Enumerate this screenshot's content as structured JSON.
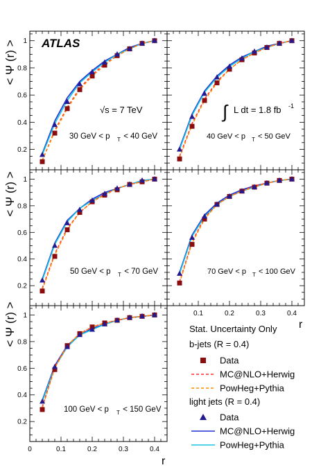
{
  "figure": {
    "experiment": "ATLAS",
    "energy_prefix": "√s = 7 TeV",
    "lumi_text": "L dt = 1.8 fb",
    "lumi_exp": "-1",
    "ylabel": "< Ψ (r) >",
    "xlabel": "r",
    "stat_note": "Stat. Uncertainty Only"
  },
  "legend": {
    "b_header": "b-jets (R = 0.4)",
    "light_header": "light jets (R = 0.4)",
    "entries": [
      {
        "group": "b",
        "kind": "square",
        "label": "Data",
        "color": "#8b0c0c"
      },
      {
        "group": "b",
        "kind": "dashed",
        "label": "MC@NLO+Herwig",
        "color": "#ff2a2a"
      },
      {
        "group": "b",
        "kind": "dashed",
        "label": "PowHeg+Pythia",
        "color": "#ff8a00"
      },
      {
        "group": "light",
        "kind": "triangle",
        "label": "Data",
        "color": "#231a8f"
      },
      {
        "group": "light",
        "kind": "solid",
        "label": "MC@NLO+Herwig",
        "color": "#1f2fd4"
      },
      {
        "group": "light",
        "kind": "solid",
        "label": "PowHeg+Pythia",
        "color": "#19c2e0"
      }
    ]
  },
  "chart_data": [
    {
      "type": "line",
      "panel": "30-40",
      "pt_text": "30 GeV < p",
      "pt_sub": "T",
      "pt_tail": " < 40 GeV",
      "x": [
        0.04,
        0.08,
        0.12,
        0.16,
        0.2,
        0.24,
        0.28,
        0.32,
        0.36,
        0.4
      ],
      "xlim": [
        0,
        0.44
      ],
      "ylim": [
        0.05,
        1.07
      ],
      "series": [
        {
          "name": "b-jets Data",
          "values": [
            0.11,
            0.32,
            0.5,
            0.64,
            0.74,
            0.82,
            0.89,
            0.94,
            0.98,
            1.0
          ]
        },
        {
          "name": "b-jets MC@NLO+Herwig",
          "values": [
            0.12,
            0.34,
            0.51,
            0.65,
            0.75,
            0.83,
            0.89,
            0.94,
            0.98,
            1.0
          ]
        },
        {
          "name": "b-jets PowHeg+Pythia",
          "values": [
            0.12,
            0.33,
            0.5,
            0.64,
            0.74,
            0.82,
            0.89,
            0.94,
            0.98,
            1.0
          ]
        },
        {
          "name": "light jets Data",
          "values": [
            0.16,
            0.38,
            0.55,
            0.68,
            0.77,
            0.84,
            0.9,
            0.94,
            0.98,
            1.0
          ]
        },
        {
          "name": "light jets MC@NLO+Herwig",
          "values": [
            0.17,
            0.41,
            0.58,
            0.7,
            0.78,
            0.85,
            0.9,
            0.95,
            0.98,
            1.0
          ]
        },
        {
          "name": "light jets PowHeg+Pythia",
          "values": [
            0.16,
            0.39,
            0.56,
            0.69,
            0.77,
            0.84,
            0.9,
            0.94,
            0.98,
            1.0
          ]
        }
      ]
    },
    {
      "type": "line",
      "panel": "40-50",
      "pt_text": "40 GeV < p",
      "pt_sub": "T",
      "pt_tail": " < 50 GeV",
      "x": [
        0.04,
        0.08,
        0.12,
        0.16,
        0.2,
        0.24,
        0.28,
        0.32,
        0.36,
        0.4
      ],
      "xlim": [
        0,
        0.44
      ],
      "ylim": [
        0.05,
        1.07
      ],
      "series": [
        {
          "name": "b-jets Data",
          "values": [
            0.13,
            0.37,
            0.56,
            0.69,
            0.79,
            0.86,
            0.91,
            0.95,
            0.98,
            1.0
          ]
        },
        {
          "name": "b-jets MC@NLO+Herwig",
          "values": [
            0.15,
            0.39,
            0.57,
            0.7,
            0.79,
            0.86,
            0.91,
            0.95,
            0.98,
            1.0
          ]
        },
        {
          "name": "b-jets PowHeg+Pythia",
          "values": [
            0.14,
            0.38,
            0.56,
            0.69,
            0.79,
            0.86,
            0.91,
            0.95,
            0.98,
            1.0
          ]
        },
        {
          "name": "light jets Data",
          "values": [
            0.2,
            0.44,
            0.61,
            0.73,
            0.81,
            0.87,
            0.92,
            0.95,
            0.98,
            1.0
          ]
        },
        {
          "name": "light jets MC@NLO+Herwig",
          "values": [
            0.21,
            0.46,
            0.63,
            0.74,
            0.82,
            0.88,
            0.92,
            0.96,
            0.98,
            1.0
          ]
        },
        {
          "name": "light jets PowHeg+Pythia",
          "values": [
            0.2,
            0.45,
            0.62,
            0.73,
            0.81,
            0.87,
            0.92,
            0.95,
            0.98,
            1.0
          ]
        }
      ]
    },
    {
      "type": "line",
      "panel": "50-70",
      "pt_text": "50 GeV < p",
      "pt_sub": "T",
      "pt_tail": " < 70 GeV",
      "x": [
        0.04,
        0.08,
        0.12,
        0.16,
        0.2,
        0.24,
        0.28,
        0.32,
        0.36,
        0.4
      ],
      "xlim": [
        0,
        0.44
      ],
      "ylim": [
        0.05,
        1.07
      ],
      "series": [
        {
          "name": "b-jets Data",
          "values": [
            0.16,
            0.42,
            0.62,
            0.75,
            0.83,
            0.88,
            0.92,
            0.96,
            0.98,
            1.0
          ]
        },
        {
          "name": "b-jets MC@NLO+Herwig",
          "values": [
            0.18,
            0.44,
            0.63,
            0.75,
            0.83,
            0.89,
            0.93,
            0.96,
            0.98,
            1.0
          ]
        },
        {
          "name": "b-jets PowHeg+Pythia",
          "values": [
            0.17,
            0.43,
            0.62,
            0.75,
            0.83,
            0.88,
            0.93,
            0.96,
            0.98,
            1.0
          ]
        },
        {
          "name": "light jets Data",
          "values": [
            0.24,
            0.5,
            0.67,
            0.77,
            0.84,
            0.89,
            0.93,
            0.96,
            0.99,
            1.0
          ]
        },
        {
          "name": "light jets MC@NLO+Herwig",
          "values": [
            0.25,
            0.52,
            0.69,
            0.78,
            0.85,
            0.9,
            0.93,
            0.96,
            0.99,
            1.0
          ]
        },
        {
          "name": "light jets PowHeg+Pythia",
          "values": [
            0.24,
            0.51,
            0.68,
            0.78,
            0.84,
            0.89,
            0.93,
            0.96,
            0.99,
            1.0
          ]
        }
      ]
    },
    {
      "type": "line",
      "panel": "70-100",
      "pt_text": "70 GeV < p",
      "pt_sub": "T",
      "pt_tail": " < 100 GeV",
      "x": [
        0.04,
        0.08,
        0.12,
        0.16,
        0.2,
        0.24,
        0.28,
        0.32,
        0.36,
        0.4
      ],
      "xlim": [
        0,
        0.44
      ],
      "ylim": [
        0.05,
        1.07
      ],
      "series": [
        {
          "name": "b-jets Data",
          "values": [
            0.22,
            0.51,
            0.7,
            0.81,
            0.87,
            0.91,
            0.94,
            0.97,
            0.99,
            1.0
          ]
        },
        {
          "name": "b-jets MC@NLO+Herwig",
          "values": [
            0.23,
            0.53,
            0.71,
            0.81,
            0.87,
            0.91,
            0.95,
            0.97,
            0.99,
            1.0
          ]
        },
        {
          "name": "b-jets PowHeg+Pythia",
          "values": [
            0.22,
            0.52,
            0.7,
            0.81,
            0.87,
            0.91,
            0.94,
            0.97,
            0.99,
            1.0
          ]
        },
        {
          "name": "light jets Data",
          "values": [
            0.29,
            0.56,
            0.72,
            0.81,
            0.87,
            0.91,
            0.94,
            0.97,
            0.99,
            1.0
          ]
        },
        {
          "name": "light jets MC@NLO+Herwig",
          "values": [
            0.3,
            0.58,
            0.73,
            0.82,
            0.88,
            0.92,
            0.95,
            0.97,
            0.99,
            1.0
          ]
        },
        {
          "name": "light jets PowHeg+Pythia",
          "values": [
            0.29,
            0.57,
            0.72,
            0.81,
            0.87,
            0.91,
            0.94,
            0.97,
            0.99,
            1.0
          ]
        }
      ]
    },
    {
      "type": "line",
      "panel": "100-150",
      "pt_text": "100 GeV < p",
      "pt_sub": "T",
      "pt_tail": " < 150 GeV",
      "x": [
        0.04,
        0.08,
        0.12,
        0.16,
        0.2,
        0.24,
        0.28,
        0.32,
        0.36,
        0.4
      ],
      "xlim": [
        0,
        0.44
      ],
      "ylim": [
        0.05,
        1.07
      ],
      "series": [
        {
          "name": "b-jets Data",
          "values": [
            0.29,
            0.59,
            0.77,
            0.86,
            0.91,
            0.94,
            0.96,
            0.98,
            0.99,
            1.0
          ]
        },
        {
          "name": "b-jets MC@NLO+Herwig",
          "values": [
            0.31,
            0.61,
            0.77,
            0.86,
            0.91,
            0.94,
            0.96,
            0.98,
            0.99,
            1.0
          ]
        },
        {
          "name": "b-jets PowHeg+Pythia",
          "values": [
            0.3,
            0.6,
            0.77,
            0.86,
            0.91,
            0.94,
            0.96,
            0.98,
            0.99,
            1.0
          ]
        },
        {
          "name": "light jets Data",
          "values": [
            0.35,
            0.61,
            0.76,
            0.85,
            0.89,
            0.93,
            0.96,
            0.98,
            0.99,
            1.0
          ]
        },
        {
          "name": "light jets MC@NLO+Herwig",
          "values": [
            0.36,
            0.62,
            0.77,
            0.85,
            0.9,
            0.93,
            0.96,
            0.98,
            0.99,
            1.0
          ]
        },
        {
          "name": "light jets PowHeg+Pythia",
          "values": [
            0.35,
            0.61,
            0.76,
            0.85,
            0.89,
            0.93,
            0.96,
            0.98,
            0.99,
            1.0
          ]
        }
      ]
    }
  ],
  "axis": {
    "yticks": [
      0.2,
      0.4,
      0.6,
      0.8,
      1
    ],
    "yticklabels": [
      "0.2",
      "0.4",
      "0.6",
      "0.8",
      "1"
    ],
    "xticks": [
      0,
      0.1,
      0.2,
      0.3,
      0.4
    ],
    "xticklabels": [
      "0",
      "0.1",
      "0.2",
      "0.3",
      "0.4"
    ]
  },
  "colors": {
    "b_data": "#8b0c0c",
    "b_mc": "#ff2a2a",
    "b_pw": "#ff8a00",
    "l_data": "#231a8f",
    "l_mc": "#1f2fd4",
    "l_pw": "#19c2e0"
  }
}
